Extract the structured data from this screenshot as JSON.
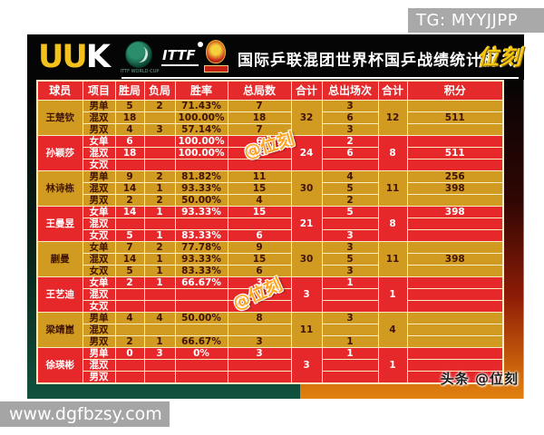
{
  "page": {
    "tg_label": "TG: MYYJJPP",
    "website": "www.dgfbzsy.com"
  },
  "header": {
    "brand_left": "UU",
    "brand_right": "K",
    "green_logo_caption": "ITTF WORLD CUP",
    "ittf_label": "ITTF",
    "title": "国际乒联混团世界杯国乒战绩统计榜",
    "right_logo": "位刻"
  },
  "overlays": {
    "watermark_1": "@位刻",
    "watermark_2": "@位刻",
    "footer_credit": "头条 @位刻"
  },
  "colors": {
    "header_red": "#e42a2b",
    "row_red": "#e7282b",
    "row_gold": "#d19a20",
    "border_cream": "#f8edc0",
    "brand_yellow": "#f2c11c",
    "watermark_orange": "#ffa41e",
    "left_bg_green": "#11523f",
    "right_bg_orange": "#e2820f"
  },
  "chart_data": {
    "type": "table",
    "title": "国际乒联混团世界杯国乒战绩统计榜",
    "columns": [
      "球员",
      "项目",
      "胜局",
      "负局",
      "胜率",
      "总局数",
      "合计",
      "总出场次",
      "合计",
      "积分"
    ],
    "players": [
      {
        "name": "王楚钦",
        "theme": "gold",
        "total_games": "32",
        "total_appearances": "12",
        "rows": [
          {
            "event": "男单",
            "wins": "5",
            "losses": "2",
            "rate": "71.43%",
            "games": "7",
            "appearances": "3",
            "points": ""
          },
          {
            "event": "混双",
            "wins": "18",
            "losses": "",
            "rate": "100.00%",
            "games": "18",
            "appearances": "6",
            "points": "511"
          },
          {
            "event": "男双",
            "wins": "4",
            "losses": "3",
            "rate": "57.14%",
            "games": "7",
            "appearances": "3",
            "points": ""
          }
        ]
      },
      {
        "name": "孙颖莎",
        "theme": "red",
        "total_games": "24",
        "total_appearances": "8",
        "rows": [
          {
            "event": "女单",
            "wins": "6",
            "losses": "",
            "rate": "100.00%",
            "games": "6",
            "appearances": "2",
            "points": ""
          },
          {
            "event": "混双",
            "wins": "18",
            "losses": "",
            "rate": "100.00%",
            "games": "18",
            "appearances": "6",
            "points": "511"
          },
          {
            "event": "女双",
            "wins": "",
            "losses": "",
            "rate": "",
            "games": "",
            "appearances": "",
            "points": ""
          }
        ]
      },
      {
        "name": "林诗栋",
        "theme": "gold",
        "total_games": "30",
        "total_appearances": "11",
        "rows": [
          {
            "event": "男单",
            "wins": "9",
            "losses": "2",
            "rate": "81.82%",
            "games": "11",
            "appearances": "4",
            "points": "256"
          },
          {
            "event": "混双",
            "wins": "14",
            "losses": "1",
            "rate": "93.33%",
            "games": "15",
            "appearances": "5",
            "points": "398"
          },
          {
            "event": "男双",
            "wins": "2",
            "losses": "2",
            "rate": "50.00%",
            "games": "4",
            "appearances": "2",
            "points": ""
          }
        ]
      },
      {
        "name": "王曼昱",
        "theme": "red",
        "total_games": "21",
        "total_appearances": "8",
        "rows": [
          {
            "event": "女单",
            "wins": "14",
            "losses": "1",
            "rate": "93.33%",
            "games": "15",
            "appearances": "5",
            "points": "398"
          },
          {
            "event": "混双",
            "wins": "",
            "losses": "",
            "rate": "",
            "games": "",
            "appearances": "",
            "points": ""
          },
          {
            "event": "女双",
            "wins": "5",
            "losses": "1",
            "rate": "83.33%",
            "games": "6",
            "appearances": "3",
            "points": ""
          }
        ]
      },
      {
        "name": "蒯曼",
        "theme": "gold",
        "total_games": "30",
        "total_appearances": "11",
        "rows": [
          {
            "event": "女单",
            "wins": "7",
            "losses": "2",
            "rate": "77.78%",
            "games": "9",
            "appearances": "3",
            "points": ""
          },
          {
            "event": "混双",
            "wins": "14",
            "losses": "1",
            "rate": "93.33%",
            "games": "15",
            "appearances": "5",
            "points": "398"
          },
          {
            "event": "女双",
            "wins": "5",
            "losses": "1",
            "rate": "83.33%",
            "games": "6",
            "appearances": "3",
            "points": ""
          }
        ]
      },
      {
        "name": "王艺迪",
        "theme": "red",
        "total_games": "3",
        "total_appearances": "1",
        "rows": [
          {
            "event": "女单",
            "wins": "2",
            "losses": "1",
            "rate": "66.67%",
            "games": "3",
            "appearances": "1",
            "points": ""
          },
          {
            "event": "混双",
            "wins": "",
            "losses": "",
            "rate": "",
            "games": "",
            "appearances": "",
            "points": ""
          },
          {
            "event": "女双",
            "wins": "",
            "losses": "",
            "rate": "",
            "games": "",
            "appearances": "",
            "points": ""
          }
        ]
      },
      {
        "name": "梁靖崑",
        "theme": "gold",
        "total_games": "11",
        "total_appearances": "4",
        "rows": [
          {
            "event": "男单",
            "wins": "4",
            "losses": "4",
            "rate": "50.00%",
            "games": "8",
            "appearances": "3",
            "points": ""
          },
          {
            "event": "混双",
            "wins": "",
            "losses": "",
            "rate": "",
            "games": "",
            "appearances": "",
            "points": ""
          },
          {
            "event": "男双",
            "wins": "2",
            "losses": "1",
            "rate": "66.67%",
            "games": "3",
            "appearances": "1",
            "points": ""
          }
        ]
      },
      {
        "name": "徐瑛彬",
        "theme": "red",
        "total_games": "3",
        "total_appearances": "1",
        "rows": [
          {
            "event": "男单",
            "wins": "0",
            "losses": "3",
            "rate": "0%",
            "games": "3",
            "appearances": "1",
            "points": ""
          },
          {
            "event": "混双",
            "wins": "",
            "losses": "",
            "rate": "",
            "games": "",
            "appearances": "",
            "points": ""
          },
          {
            "event": "男双",
            "wins": "",
            "losses": "",
            "rate": "",
            "games": "",
            "appearances": "",
            "points": ""
          }
        ]
      }
    ]
  }
}
